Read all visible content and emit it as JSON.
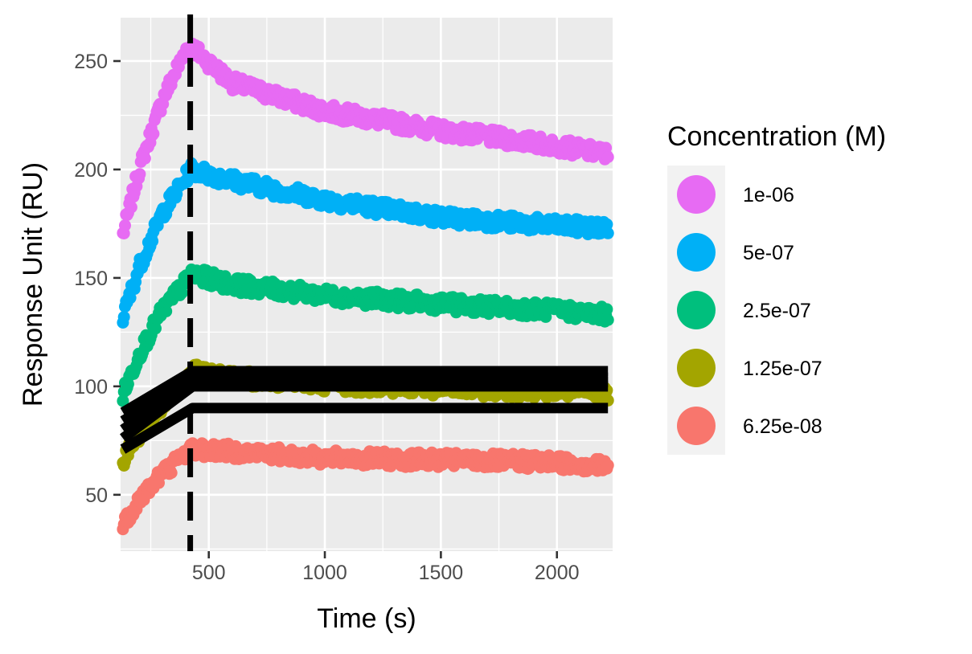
{
  "chart_data": {
    "type": "scatter",
    "title": "",
    "xlabel": "Time (s)",
    "ylabel": "Response Unit (RU)",
    "xlim": [
      120,
      2240
    ],
    "ylim": [
      24,
      270
    ],
    "x_ticks": [
      500,
      1000,
      1500,
      2000
    ],
    "y_ticks": [
      50,
      100,
      150,
      200,
      250
    ],
    "grid": true,
    "background": "#ebebeb",
    "vline": {
      "x": 420,
      "style": "dashed",
      "color": "#000000"
    },
    "legend": {
      "title": "Concentration (M)",
      "position": "right"
    },
    "series": [
      {
        "name": "1e-06",
        "color": "#e76bf3",
        "points": [
          [
            130,
            170
          ],
          [
            200,
            200
          ],
          [
            300,
            232
          ],
          [
            400,
            255
          ],
          [
            420,
            257
          ],
          [
            600,
            240
          ],
          [
            1000,
            227
          ],
          [
            1500,
            218
          ],
          [
            2000,
            211
          ],
          [
            2220,
            207
          ]
        ]
      },
      {
        "name": "5e-07",
        "color": "#00b0f6",
        "points": [
          [
            130,
            132
          ],
          [
            200,
            155
          ],
          [
            300,
            180
          ],
          [
            400,
            196
          ],
          [
            420,
            200
          ],
          [
            600,
            195
          ],
          [
            1000,
            186
          ],
          [
            1500,
            178
          ],
          [
            2000,
            174
          ],
          [
            2220,
            173
          ]
        ]
      },
      {
        "name": "2.5e-07",
        "color": "#00bf7d",
        "points": [
          [
            130,
            96
          ],
          [
            200,
            115
          ],
          [
            300,
            135
          ],
          [
            400,
            148
          ],
          [
            420,
            152
          ],
          [
            600,
            147
          ],
          [
            1000,
            142
          ],
          [
            1500,
            138
          ],
          [
            2000,
            135
          ],
          [
            2220,
            133
          ]
        ]
      },
      {
        "name": "1.25e-07",
        "color": "#a3a500",
        "points": [
          [
            130,
            66
          ],
          [
            200,
            78
          ],
          [
            300,
            92
          ],
          [
            400,
            103
          ],
          [
            420,
            107
          ],
          [
            600,
            104
          ],
          [
            1000,
            101
          ],
          [
            1500,
            99
          ],
          [
            2000,
            98
          ],
          [
            2220,
            97
          ]
        ]
      },
      {
        "name": "6.25e-08",
        "color": "#f8766d",
        "points": [
          [
            130,
            36
          ],
          [
            200,
            48
          ],
          [
            300,
            60
          ],
          [
            400,
            69
          ],
          [
            420,
            71
          ],
          [
            600,
            70
          ],
          [
            1000,
            67
          ],
          [
            1500,
            66
          ],
          [
            2000,
            65
          ],
          [
            2220,
            63
          ]
        ]
      }
    ],
    "fit_lines": [
      {
        "color": "#000000",
        "points": [
          [
            130,
            88
          ],
          [
            430,
            107
          ],
          [
            2220,
            107
          ]
        ]
      },
      {
        "color": "#000000",
        "points": [
          [
            130,
            84
          ],
          [
            430,
            104
          ],
          [
            2220,
            104
          ]
        ]
      },
      {
        "color": "#000000",
        "points": [
          [
            130,
            80
          ],
          [
            430,
            102
          ],
          [
            2220,
            102
          ]
        ]
      },
      {
        "color": "#000000",
        "points": [
          [
            130,
            76
          ],
          [
            430,
            100
          ],
          [
            2220,
            100
          ]
        ]
      },
      {
        "color": "#000000",
        "points": [
          [
            130,
            71
          ],
          [
            430,
            90
          ],
          [
            2220,
            90
          ]
        ]
      }
    ]
  }
}
